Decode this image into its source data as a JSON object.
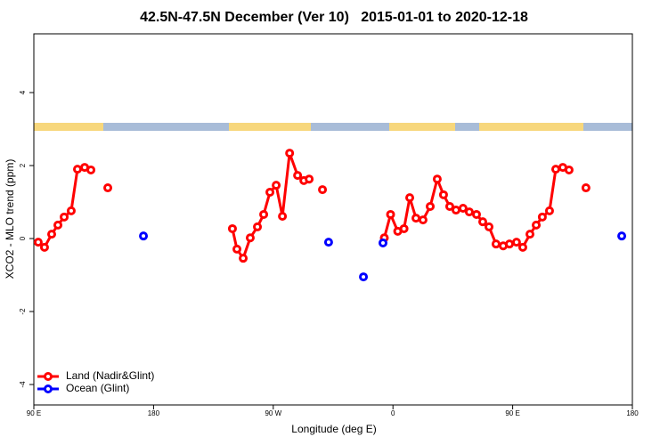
{
  "chart_data": {
    "type": "line",
    "title": "42.5N-47.5N December (Ver 10)   2015-01-01 to 2020-12-18",
    "x_label": "Longitude (deg E)",
    "y_label": "XCO2 - MLO trend (ppm)",
    "xlim": [
      90,
      540
    ],
    "ylim": [
      -4.56,
      5.61
    ],
    "xticks": [
      {
        "value": 90,
        "label": "90 E"
      },
      {
        "value": 180,
        "label": "180"
      },
      {
        "value": 270,
        "label": "90 W"
      },
      {
        "value": 360,
        "label": "0"
      },
      {
        "value": 450,
        "label": "90 E"
      },
      {
        "value": 540,
        "label": "180"
      }
    ],
    "yticks": [
      -4,
      -2,
      0,
      2,
      4
    ],
    "legend": "bottom-left",
    "series": [
      {
        "name": "Land (Nadir&Glint)",
        "color": "#ff0000",
        "x": [
          93.3,
          98.0,
          103.4,
          108.1,
          112.8,
          118.1,
          122.8,
          128.2,
          132.9,
          145.6,
          239.3,
          242.7,
          247.4,
          252.7,
          258.1,
          262.8,
          267.5,
          272.2,
          276.9,
          282.3,
          288.3,
          293.0,
          297.0,
          307.0,
          353.5,
          358.2,
          363.6,
          368.3,
          372.6,
          377.3,
          382.6,
          388.0,
          393.3,
          398.0,
          402.7,
          407.4,
          412.7,
          417.4,
          422.8,
          427.5,
          432.2,
          437.5,
          442.9,
          447.6,
          452.9,
          457.6,
          463.0,
          467.7,
          472.3,
          477.7,
          482.4,
          487.7,
          492.4,
          505.1
        ],
        "values": [
          -0.1,
          -0.24,
          0.12,
          0.37,
          0.59,
          0.76,
          1.9,
          1.95,
          1.88,
          1.39,
          0.27,
          -0.29,
          -0.54,
          0.02,
          0.32,
          0.66,
          1.27,
          1.46,
          0.61,
          2.34,
          1.73,
          1.59,
          1.63,
          1.34,
          0.02,
          0.66,
          0.2,
          0.27,
          1.12,
          0.56,
          0.51,
          0.88,
          1.63,
          1.2,
          0.88,
          0.78,
          0.83,
          0.73,
          0.66,
          0.46,
          0.32,
          -0.15,
          -0.2,
          -0.15,
          -0.1,
          -0.24,
          0.12,
          0.37,
          0.59,
          0.76,
          1.9,
          1.95,
          1.88,
          1.39
        ]
      },
      {
        "name": "Ocean (Glint)",
        "color": "#0000ff",
        "x": [
          172.4,
          311.6,
          337.8,
          352.5,
          532.0
        ],
        "values": [
          0.07,
          -0.1,
          -1.05,
          -0.12,
          0.07
        ]
      }
    ]
  }
}
